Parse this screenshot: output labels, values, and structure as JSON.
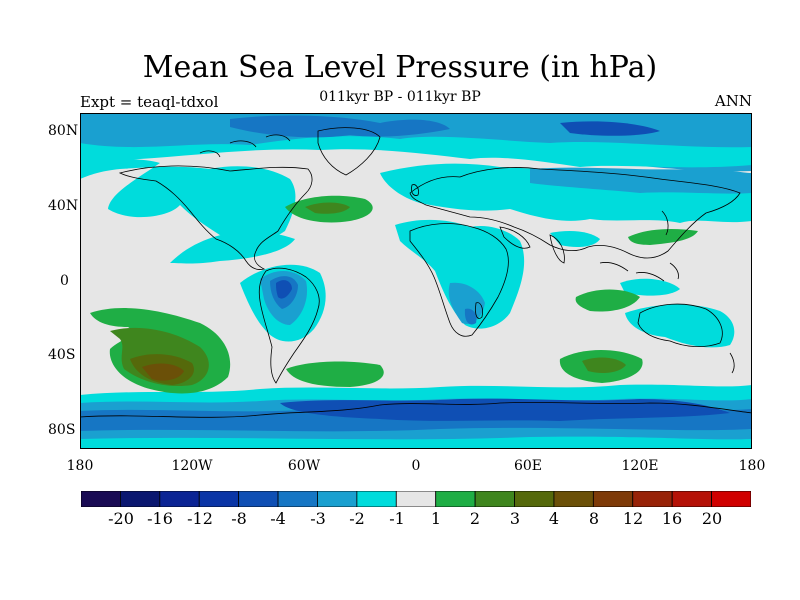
{
  "title": "Mean Sea Level Pressure (in hPa)",
  "subtitle": "011kyr BP - 011kyr BP",
  "experiment_label": "Expt = teaql-tdxol",
  "season": "ANN",
  "lat_ticks": [
    "80N",
    "40N",
    "0",
    "40S",
    "80S"
  ],
  "lon_ticks": [
    "180",
    "120W",
    "60W",
    "0",
    "60E",
    "120E",
    "180"
  ],
  "colorbar": {
    "colors": [
      "#1a0b54",
      "#0a1770",
      "#0b2494",
      "#0a35a6",
      "#0f4fb4",
      "#1676c4",
      "#1aa0d0",
      "#00dcdc",
      "#e6e6e6",
      "#1fae45",
      "#3f861e",
      "#55690b",
      "#6b5008",
      "#7e3a08",
      "#982308",
      "#b51207",
      "#d00000"
    ],
    "labels": [
      "-20",
      "-16",
      "-12",
      "-8",
      "-4",
      "-3",
      "-2",
      "-1",
      "1",
      "2",
      "3",
      "4",
      "8",
      "12",
      "16",
      "20"
    ]
  },
  "field_colors": {
    "background": "#e6e6e6",
    "cyan": "#00dcdc",
    "light_blue": "#1aa0d0",
    "mid_blue": "#1676c4",
    "dark_blue": "#0f4fb4",
    "green": "#1fae45",
    "dark_green": "#3f861e",
    "olive": "#55690b",
    "brown": "#6b5008"
  }
}
